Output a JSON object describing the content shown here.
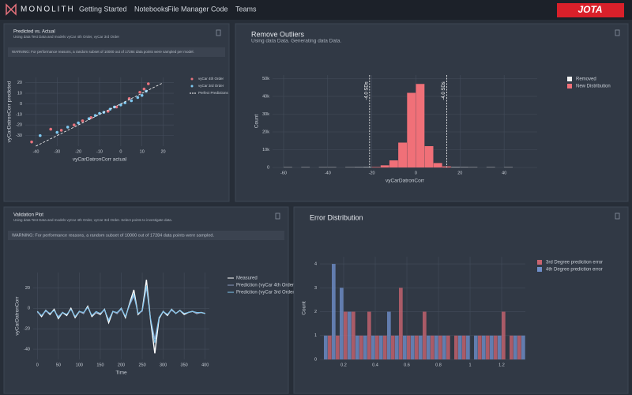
{
  "nav": {
    "brand": "MONOLITH",
    "items": [
      "Getting Started",
      "Notebooks",
      "File Manager",
      "Code",
      "Teams"
    ],
    "logo": "JOTA"
  },
  "panels": [
    {
      "title": "Predicted vs. Actual",
      "subtitle": "Using data Test Data and models vyCar 4th Order, vyCar 3rd Order",
      "warning": "WARNING: For performance reasons, a random subset of 10000 out of 17284 data points were sampled per model.",
      "chart": {
        "type": "scatter",
        "xlabel": "vyCarDatronCorr actual",
        "ylabel": "vyCarDatronCorr predicted",
        "xlim": [
          -45,
          25
        ],
        "xticks": [
          -40,
          -30,
          -20,
          -10,
          0,
          10,
          20
        ],
        "ylim": [
          -40,
          25
        ],
        "yticks": [
          -30,
          -20,
          -10,
          0,
          10,
          20
        ],
        "grid": true,
        "series": [
          {
            "name": "vyCar 4th Order",
            "color": "#e8737d",
            "x": [
              -42,
              -33,
              -28,
              -22,
              -18,
              -14,
              -6,
              -2,
              4,
              9,
              11,
              13
            ],
            "values": [
              -36,
              -24,
              -25,
              -20,
              -16,
              -13,
              -7,
              -3,
              5,
              11,
              14,
              19
            ]
          },
          {
            "name": "vyCar 3rd Order",
            "color": "#7ec8f0",
            "x": [
              -38,
              -30,
              -25,
              -20,
              -15,
              -12,
              -10,
              -8,
              -5,
              -3,
              0,
              2,
              5,
              8,
              10,
              12
            ],
            "values": [
              -30,
              -27,
              -22,
              -18,
              -14,
              -11,
              -9,
              -8,
              -5,
              -3,
              -1,
              1,
              3,
              6,
              8,
              12
            ]
          },
          {
            "name": "Perfect Predictions",
            "color": "#ffffff",
            "dash": true,
            "x": [
              -40,
              20
            ],
            "values": [
              -40,
              20
            ]
          }
        ]
      }
    },
    {
      "title": "Remove Outliers",
      "subtitle": "Using data Data. Generating data Data.",
      "chart": {
        "type": "histogram",
        "xlabel": "vyCarDatronCorr",
        "ylabel": "Count",
        "xlim": [
          -65,
          55
        ],
        "xticks": [
          -60,
          -40,
          -20,
          0,
          20,
          40
        ],
        "ylim": [
          0,
          52000
        ],
        "yticks": [
          0,
          {
            "value": 10000,
            "label": "10k"
          },
          {
            "value": 20000,
            "label": "20k"
          },
          {
            "value": 30000,
            "label": "30k"
          },
          {
            "value": 40000,
            "label": "40k"
          },
          {
            "value": 50000,
            "label": "50k"
          }
        ],
        "grid": true,
        "bins": [
          -60,
          -56,
          -52,
          -48,
          -44,
          -40,
          -36,
          -32,
          -28,
          -24,
          -20,
          -16,
          -12,
          -8,
          -4,
          0,
          4,
          8,
          12,
          16,
          20,
          24,
          28,
          32,
          36,
          40,
          44
        ],
        "series": [
          {
            "name": "Removed",
            "color": "#f0f0f0",
            "values": [
              150,
              0,
              150,
              0,
              150,
              150,
              0,
              150,
              200,
              250,
              0,
              0,
              0,
              0,
              0,
              0,
              0,
              0,
              0,
              250,
              200,
              150,
              0,
              150,
              0,
              150
            ]
          },
          {
            "name": "New Distribution",
            "color": "#f07078",
            "values": [
              0,
              0,
              0,
              0,
              0,
              0,
              0,
              0,
              0,
              0,
              300,
              1200,
              4000,
              14000,
              42000,
              47000,
              12000,
              2500,
              600,
              0,
              0,
              0,
              0,
              0,
              0,
              0
            ]
          }
        ],
        "annotations": [
          {
            "x": -21,
            "label": "-4.0 SDs"
          },
          {
            "x": 14,
            "label": "-4.0 SDs"
          }
        ]
      }
    },
    {
      "title": "Validation Plot",
      "subtitle": "Using data Test Data and models vyCar 4th Order, vyCar 3rd Order. Select points to investigate data.",
      "warning": "WARNING: For performance reasons, a random subset of 10000 out of 17284 data points were sampled.",
      "chart": {
        "type": "line",
        "xlabel": "Time",
        "ylabel": "vyCarDatronCorr",
        "xlim": [
          -10,
          410
        ],
        "xticks": [
          0,
          50,
          100,
          150,
          200,
          250,
          300,
          350,
          400
        ],
        "ylim": [
          -50,
          35
        ],
        "yticks": [
          -40,
          -20,
          0,
          20
        ],
        "grid": true,
        "x": [
          0,
          10,
          20,
          30,
          40,
          50,
          60,
          70,
          80,
          90,
          100,
          110,
          120,
          130,
          140,
          150,
          160,
          170,
          180,
          190,
          200,
          210,
          220,
          230,
          240,
          250,
          260,
          270,
          280,
          290,
          300,
          310,
          320,
          330,
          340,
          350,
          360,
          370,
          380,
          390,
          400
        ],
        "series": [
          {
            "name": "Measured",
            "color": "#ffffff",
            "values": [
              -3,
              -8,
              -2,
              -6,
              -1,
              -10,
              -4,
              -7,
              0,
              -9,
              -3,
              -5,
              2,
              -8,
              -4,
              -6,
              -1,
              -14,
              -3,
              -5,
              0,
              -9,
              5,
              18,
              -6,
              -2,
              28,
              -12,
              -44,
              -10,
              -3,
              -7,
              -1,
              -5,
              -2,
              -6,
              -4,
              -3,
              -5,
              -4,
              -5
            ]
          },
          {
            "name": "Prediction (vyCar 4th Order)",
            "color": "#8c9cc0",
            "values": [
              -4,
              -7,
              -3,
              -5,
              -2,
              -8,
              -4,
              -6,
              -1,
              -8,
              -3,
              -5,
              1,
              -7,
              -4,
              -5,
              -2,
              -11,
              -3,
              -5,
              -1,
              -8,
              3,
              12,
              -5,
              -3,
              20,
              -10,
              -30,
              -9,
              -3,
              -6,
              -2,
              -5,
              -2,
              -5,
              -4,
              -3,
              -5,
              -4,
              -5
            ]
          },
          {
            "name": "Prediction (vyCar 3rd Order)",
            "color": "#7ec8f0",
            "values": [
              -3,
              -7,
              -2,
              -5,
              -2,
              -9,
              -4,
              -6,
              -1,
              -8,
              -3,
              -4,
              1,
              -7,
              -3,
              -5,
              -1,
              -12,
              -3,
              -4,
              0,
              -8,
              4,
              14,
              -5,
              -2,
              22,
              -11,
              -34,
              -9,
              -3,
              -6,
              -1,
              -5,
              -2,
              -5,
              -4,
              -3,
              -4,
              -4,
              -5
            ]
          }
        ]
      }
    },
    {
      "title": "Error Distribution",
      "chart": {
        "type": "histogram",
        "ylabel": "Count",
        "side": true,
        "xlim": [
          0.05,
          1.35
        ],
        "xticks": [
          0.2,
          0.4,
          0.6,
          0.8,
          1,
          1.2
        ],
        "ylim": [
          0,
          4.3
        ],
        "yticks": [
          0,
          1,
          2,
          3,
          4
        ],
        "grid": true,
        "bins": [
          0.05,
          0.1,
          0.15,
          0.2,
          0.25,
          0.3,
          0.35,
          0.4,
          0.45,
          0.5,
          0.55,
          0.6,
          0.65,
          0.7,
          0.75,
          0.8,
          0.85,
          0.9,
          0.95,
          1,
          1.05,
          1.1,
          1.15,
          1.2,
          1.25,
          1.3,
          1.35
        ],
        "series": [
          {
            "name": "3rd Degree prediction error",
            "color": "#c9646f",
            "values": [
              0,
              1,
              1,
              2,
              2,
              1,
              2,
              1,
              1,
              1,
              3,
              1,
              1,
              2,
              1,
              1,
              1,
              1,
              1,
              0,
              1,
              1,
              1,
              2,
              1,
              1
            ]
          },
          {
            "name": "4th Degree prediction error",
            "color": "#6f8fc9",
            "values": [
              1,
              4,
              3,
              2,
              1,
              1,
              1,
              1,
              2,
              1,
              1,
              1,
              1,
              1,
              1,
              1,
              0,
              1,
              1,
              1,
              1,
              1,
              1,
              0,
              1,
              1
            ]
          }
        ]
      }
    }
  ]
}
